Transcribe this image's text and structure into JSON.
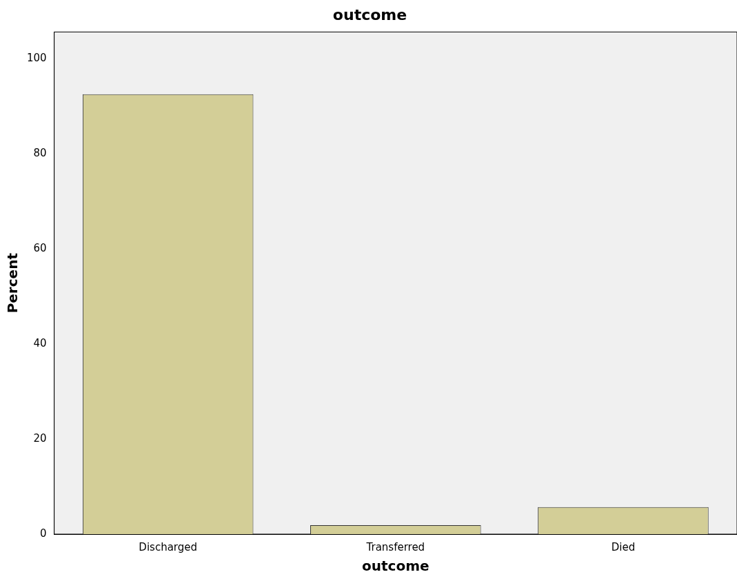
{
  "chart_data": {
    "type": "bar",
    "title": "outcome",
    "xlabel": "outcome",
    "ylabel": "Percent",
    "categories": [
      "Discharged",
      "Transferred",
      "Died"
    ],
    "values": [
      92.5,
      1.9,
      5.7
    ],
    "color": "#d3ce97",
    "ylim": [
      0,
      105.6
    ],
    "yticks": [
      0,
      20,
      40,
      60,
      80,
      100
    ],
    "grid": false,
    "legend": false
  }
}
